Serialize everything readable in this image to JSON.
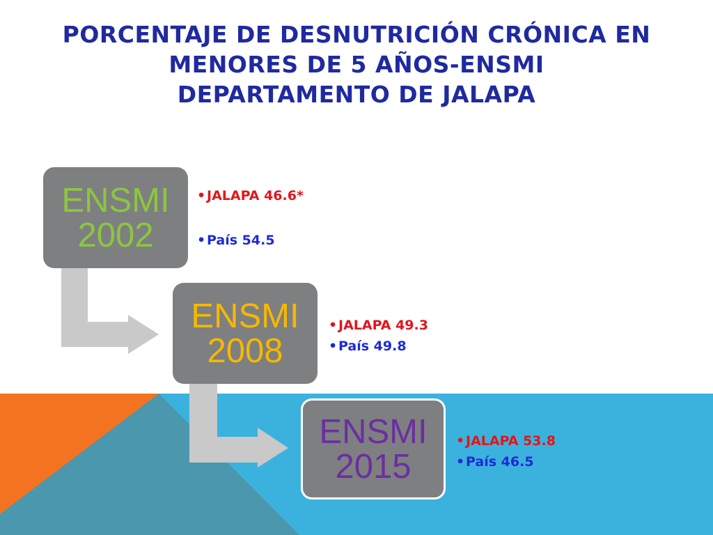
{
  "title": {
    "line1": "PORCENTAJE DE DESNUTRICIÓN CRÓNICA EN",
    "line2": "MENORES DE 5 AÑOS-ENSMI",
    "line3": "DEPARTAMENTO DE JALAPA"
  },
  "colors": {
    "title": "#1f2aa0",
    "box_fill": "#7e7f81",
    "arrow_fill": "#c9c9c9",
    "ensmi_2002": "#8cc63f",
    "ensmi_2008": "#f5b800",
    "ensmi_2015": "#6b2fa0",
    "jalapa_text": "#e0161b",
    "pais_text": "#1d2bd6",
    "bg_orange": "#f47321",
    "bg_blue": "#3bb2dd",
    "bg_steel": "#4a97ae"
  },
  "steps": [
    {
      "line1": "ENSMI",
      "line2": "2002",
      "jalapa": "JALAPA 46.6*",
      "pais": "País 54.5"
    },
    {
      "line1": "ENSMI",
      "line2": "2008",
      "jalapa": "JALAPA 49.3",
      "pais": "País 49.8"
    },
    {
      "line1": "ENSMI",
      "line2": "2015",
      "jalapa": "JALAPA 53.8",
      "pais": "País 46.5"
    }
  ]
}
